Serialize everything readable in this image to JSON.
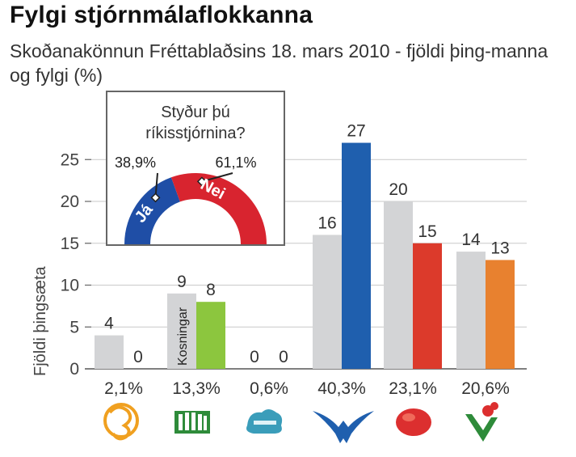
{
  "title": "Fylgi stjórnmálaflokkanna",
  "subtitle": "Skoðanakönnun Fréttablaðsins 18. mars 2010 - fjöldi þing-manna og fylgi (%)",
  "colors": {
    "grey": "#d3d4d6",
    "green": "#8cc63e",
    "blue": "#1f5fae",
    "red": "#dc3a2b",
    "orange": "#e8812f",
    "ja": "#1f4ea6",
    "nei": "#d8242f"
  },
  "chart_data": {
    "type": "bar",
    "ylabel": "Fjöldi þingsæta",
    "ylim": [
      0,
      27
    ],
    "yticks": [
      "0",
      "5",
      "10",
      "15",
      "20",
      "25"
    ],
    "grid": true,
    "categories": [
      "2,1%",
      "13,3%",
      "0,6%",
      "40,3%",
      "23,1%",
      "20,6%"
    ],
    "series": [
      {
        "name": "Kosningar",
        "values": [
          4,
          9,
          0,
          16,
          20,
          14
        ],
        "labels": [
          "4",
          "9",
          "0",
          "16",
          "20",
          "14"
        ]
      },
      {
        "values": [
          0,
          8,
          0,
          27,
          15,
          13
        ],
        "labels": [
          "0",
          "8",
          "0",
          "27",
          "15",
          "13"
        ],
        "colors": [
          "#d3d4d6",
          "#8cc63e",
          "#d3d4d6",
          "#1f5fae",
          "#dc3a2b",
          "#e8812f"
        ]
      }
    ],
    "party_icons": [
      "party-b-logo-icon",
      "party-vg-logo-icon",
      "party-hreyfingin-logo-icon",
      "party-falcon-logo-icon",
      "party-rose-logo-icon",
      "party-flower-logo-icon"
    ]
  },
  "inset": {
    "question_line1": "Styður þú",
    "question_line2": "ríkisstjórnina?",
    "ja_label": "Já",
    "nei_label": "Nei",
    "ja_value": "38,9%",
    "nei_value": "61,1%",
    "ja_fraction": 0.389
  }
}
